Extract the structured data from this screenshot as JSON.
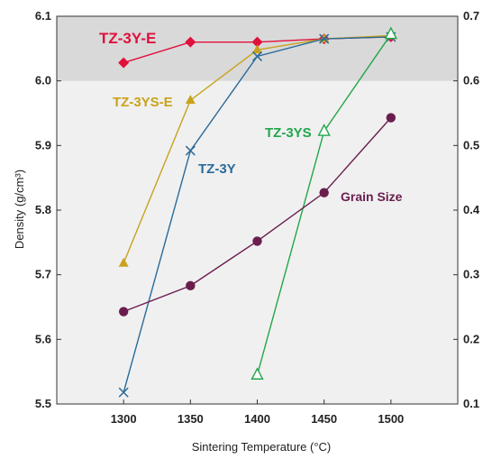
{
  "chart_data": {
    "type": "line",
    "xlabel": "Sintering Temperature (°C)",
    "ylabel": "Density (g/cm³)",
    "xlim": [
      1250,
      1550
    ],
    "ylim": [
      5.5,
      6.1
    ],
    "y2lim": [
      0.1,
      0.7
    ],
    "x_ticks": [
      "1300",
      "1350",
      "1400",
      "1450",
      "1500"
    ],
    "y_ticks": [
      "5.5",
      "5.6",
      "5.7",
      "5.8",
      "5.9",
      "6.0",
      "6.1"
    ],
    "y2_ticks": [
      "0.1",
      "0.2",
      "0.3",
      "0.4",
      "0.5",
      "0.6",
      "0.7"
    ],
    "shaded_band": [
      6.0,
      6.1
    ],
    "grid": false,
    "series": [
      {
        "name": "TZ-3Y-E",
        "axis": "left",
        "marker": "diamond",
        "color": "#e0103c",
        "x": [
          1300,
          1350,
          1400,
          1450,
          1500
        ],
        "y": [
          6.028,
          6.06,
          6.06,
          6.065,
          6.068
        ]
      },
      {
        "name": "TZ-3YS-E",
        "axis": "left",
        "marker": "triangle-filled",
        "color": "#c9a21c",
        "x": [
          1300,
          1350,
          1400,
          1450,
          1500
        ],
        "y": [
          5.718,
          5.97,
          6.048,
          6.065,
          6.07
        ]
      },
      {
        "name": "TZ-3Y",
        "axis": "left",
        "marker": "x",
        "color": "#2a6a9a",
        "x": [
          1300,
          1350,
          1400,
          1450,
          1500
        ],
        "y": [
          5.518,
          5.892,
          6.038,
          6.065,
          6.068
        ]
      },
      {
        "name": "TZ-3YS",
        "axis": "left",
        "marker": "triangle-open",
        "color": "#22a64a",
        "x": [
          1400,
          1450,
          1500
        ],
        "y": [
          5.545,
          5.922,
          6.072
        ]
      },
      {
        "name": "Grain Size",
        "axis": "right",
        "marker": "circle",
        "color": "#6a1e4e",
        "x": [
          1300,
          1350,
          1400,
          1450,
          1500
        ],
        "y": [
          0.243,
          0.283,
          0.352,
          0.427,
          0.543
        ]
      }
    ],
    "colors": {
      "plot_bg": "#f0f0f0",
      "band": "#d9d9d9",
      "axis": "#333333"
    }
  }
}
